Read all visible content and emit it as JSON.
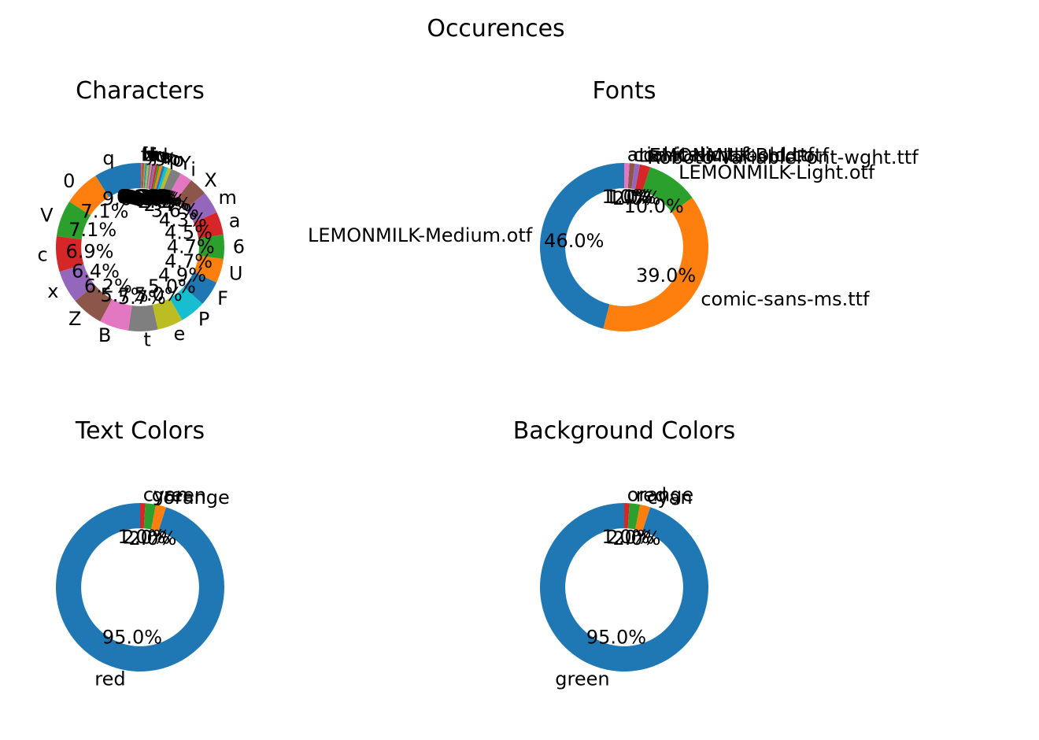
{
  "figure": {
    "title": "Occurences"
  },
  "colors": [
    "#1f77b4",
    "#ff7f0e",
    "#2ca02c",
    "#d62728",
    "#9467bd",
    "#8c564b",
    "#e377c2",
    "#7f7f7f",
    "#bcbd22",
    "#17becf"
  ],
  "chart_data": [
    {
      "type": "pie",
      "style": "donut",
      "title": "Characters",
      "start_angle_deg": 90,
      "direction": "counterclockwise",
      "labels": [
        "q",
        "0",
        "V",
        "c",
        "x",
        "Z",
        "B",
        "t",
        "e",
        "P",
        "F",
        "U",
        "6",
        "a",
        "m",
        "X",
        "i",
        "Y",
        "o",
        "p",
        "n",
        "r",
        "s",
        "w",
        "d",
        "g",
        "j",
        "k",
        "l",
        "u",
        "v",
        "y",
        "z",
        "h",
        "b",
        "f"
      ],
      "values": [
        9.0,
        7.1,
        7.1,
        6.9,
        6.4,
        6.2,
        5.7,
        5.7,
        5.0,
        5.0,
        4.9,
        4.7,
        4.7,
        4.5,
        4.3,
        3.6,
        2.4,
        2.0,
        0.7,
        0.6,
        0.5,
        0.5,
        0.4,
        0.4,
        0.4,
        0.3,
        0.3,
        0.3,
        0.3,
        0.2,
        0.2,
        0.2,
        0.2,
        0.2,
        0.2,
        0.2
      ]
    },
    {
      "type": "pie",
      "style": "donut",
      "title": "Fonts",
      "start_angle_deg": 90,
      "direction": "counterclockwise",
      "labels": [
        "LEMONMILK-Medium.otf",
        "comic-sans-ms.ttf",
        "LEMONMILK-Light.otf",
        "Roboto-VariableFont-wght.ttf",
        "LEMONMILK-Bold.otf",
        "comic-sans-bold.ttf",
        "arial-italic.ttf"
      ],
      "values": [
        46.0,
        39.0,
        10.0,
        2.0,
        1.0,
        1.0,
        1.0
      ]
    },
    {
      "type": "pie",
      "style": "donut",
      "title": "Text Colors",
      "start_angle_deg": 90,
      "direction": "counterclockwise",
      "labels": [
        "red",
        "orange",
        "green",
        "cyan"
      ],
      "values": [
        95.0,
        2.0,
        2.0,
        1.0
      ]
    },
    {
      "type": "pie",
      "style": "donut",
      "title": "Background Colors",
      "start_angle_deg": 90,
      "direction": "counterclockwise",
      "labels": [
        "green",
        "cyan",
        "red",
        "orange"
      ],
      "values": [
        95.0,
        2.0,
        2.0,
        1.0
      ]
    }
  ]
}
